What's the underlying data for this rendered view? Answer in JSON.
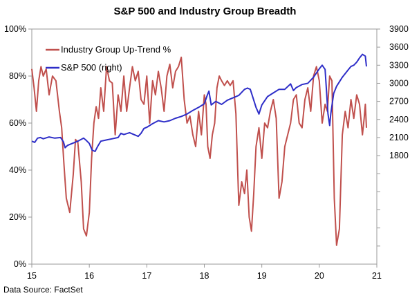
{
  "title": "S&P 500 and Industry Group Breadth",
  "source": "Data Source:  FactSet",
  "chart_data": {
    "type": "line",
    "title": "S&P 500 and Industry Group Breadth",
    "x_tick_labels": [
      "15",
      "16",
      "17",
      "18",
      "19",
      "20",
      "21"
    ],
    "x_range": [
      15,
      21
    ],
    "left_axis": {
      "ticks": [
        "0%",
        "20%",
        "40%",
        "60%",
        "80%",
        "100%"
      ],
      "ylim": [
        0,
        100
      ]
    },
    "right_axis": {
      "ticks": [
        "1800",
        "2100",
        "2400",
        "2700",
        "3000",
        "3300",
        "3600",
        "3900"
      ],
      "ylim": [
        0,
        3900
      ]
    },
    "grid": false,
    "legend": {
      "placement": "top-left"
    },
    "series": [
      {
        "name": "Industry Group Up-Trend %",
        "axis": "left",
        "color": "#c0504d",
        "x": [
          15.0,
          15.04,
          15.08,
          15.12,
          15.16,
          15.2,
          15.25,
          15.3,
          15.36,
          15.42,
          15.48,
          15.52,
          15.56,
          15.6,
          15.66,
          15.72,
          15.76,
          15.8,
          15.86,
          15.9,
          15.95,
          16.0,
          16.04,
          16.08,
          16.12,
          16.16,
          16.2,
          16.25,
          16.3,
          16.35,
          16.4,
          16.45,
          16.5,
          16.55,
          16.6,
          16.65,
          16.7,
          16.75,
          16.8,
          16.85,
          16.9,
          16.95,
          17.0,
          17.05,
          17.1,
          17.15,
          17.2,
          17.25,
          17.3,
          17.35,
          17.4,
          17.45,
          17.5,
          17.55,
          17.6,
          17.65,
          17.7,
          17.75,
          17.8,
          17.85,
          17.9,
          17.95,
          18.0,
          18.03,
          18.06,
          18.1,
          18.14,
          18.18,
          18.22,
          18.26,
          18.3,
          18.35,
          18.4,
          18.45,
          18.5,
          18.55,
          18.6,
          18.65,
          18.7,
          18.74,
          18.78,
          18.82,
          18.86,
          18.9,
          18.95,
          19.0,
          19.05,
          19.1,
          19.15,
          19.2,
          19.25,
          19.3,
          19.35,
          19.4,
          19.45,
          19.5,
          19.55,
          19.6,
          19.65,
          19.7,
          19.75,
          19.8,
          19.85,
          19.9,
          19.95,
          20.0,
          20.05,
          20.1,
          20.14,
          20.18,
          20.22,
          20.26,
          20.3,
          20.35,
          20.4,
          20.45,
          20.5,
          20.55,
          20.6,
          20.65,
          20.7,
          20.75,
          20.78,
          20.8,
          20.82
        ],
        "values": [
          83,
          75,
          65,
          78,
          84,
          80,
          83,
          72,
          80,
          78,
          65,
          58,
          42,
          28,
          22,
          38,
          53,
          52,
          35,
          15,
          12,
          22,
          45,
          60,
          67,
          62,
          75,
          65,
          84,
          78,
          77,
          55,
          72,
          65,
          80,
          65,
          75,
          84,
          78,
          82,
          70,
          68,
          80,
          60,
          78,
          72,
          82,
          75,
          65,
          80,
          85,
          75,
          82,
          84,
          88,
          70,
          60,
          63,
          55,
          50,
          65,
          55,
          72,
          68,
          50,
          45,
          55,
          60,
          75,
          80,
          78,
          76,
          78,
          76,
          78,
          64,
          25,
          35,
          30,
          40,
          20,
          14,
          30,
          50,
          58,
          45,
          60,
          58,
          65,
          70,
          62,
          28,
          35,
          50,
          55,
          60,
          70,
          72,
          60,
          58,
          70,
          75,
          65,
          80,
          84,
          78,
          60,
          68,
          65,
          80,
          78,
          28,
          8,
          15,
          55,
          65,
          58,
          70,
          62,
          72,
          68,
          55,
          62,
          68,
          58
        ]
      },
      {
        "name": "S&P 500 (right)",
        "axis": "right",
        "color": "#2e2ec8",
        "x": [
          15.0,
          15.05,
          15.1,
          15.15,
          15.2,
          15.3,
          15.4,
          15.5,
          15.55,
          15.58,
          15.62,
          15.7,
          15.8,
          15.9,
          15.95,
          16.0,
          16.05,
          16.1,
          16.15,
          16.2,
          16.3,
          16.4,
          16.5,
          16.55,
          16.6,
          16.7,
          16.8,
          16.85,
          16.9,
          16.95,
          17.0,
          17.1,
          17.2,
          17.3,
          17.4,
          17.5,
          17.6,
          17.7,
          17.8,
          17.9,
          18.0,
          18.05,
          18.08,
          18.12,
          18.2,
          18.3,
          18.4,
          18.5,
          18.6,
          18.7,
          18.75,
          18.8,
          18.85,
          18.9,
          18.95,
          19.0,
          19.1,
          19.2,
          19.3,
          19.4,
          19.5,
          19.55,
          19.6,
          19.7,
          19.8,
          19.9,
          20.0,
          20.05,
          20.1,
          20.12,
          20.15,
          20.18,
          20.2,
          20.25,
          20.3,
          20.4,
          20.5,
          20.55,
          20.6,
          20.65,
          20.7,
          20.75,
          20.8,
          20.82
        ],
        "values": [
          2040,
          2020,
          2090,
          2100,
          2080,
          2110,
          2090,
          2100,
          2030,
          1930,
          1970,
          2000,
          2040,
          2090,
          2050,
          2000,
          1890,
          1870,
          1960,
          2040,
          2060,
          2080,
          2100,
          2170,
          2150,
          2180,
          2140,
          2120,
          2170,
          2250,
          2270,
          2330,
          2380,
          2360,
          2380,
          2420,
          2450,
          2490,
          2550,
          2600,
          2660,
          2800,
          2870,
          2640,
          2700,
          2650,
          2720,
          2760,
          2800,
          2900,
          2920,
          2900,
          2750,
          2600,
          2490,
          2640,
          2780,
          2840,
          2900,
          2900,
          2990,
          2880,
          2930,
          2980,
          3000,
          3100,
          3240,
          3300,
          3230,
          2950,
          2500,
          2300,
          2500,
          2830,
          2950,
          3100,
          3220,
          3280,
          3300,
          3350,
          3420,
          3480,
          3450,
          3280
        ]
      }
    ]
  }
}
